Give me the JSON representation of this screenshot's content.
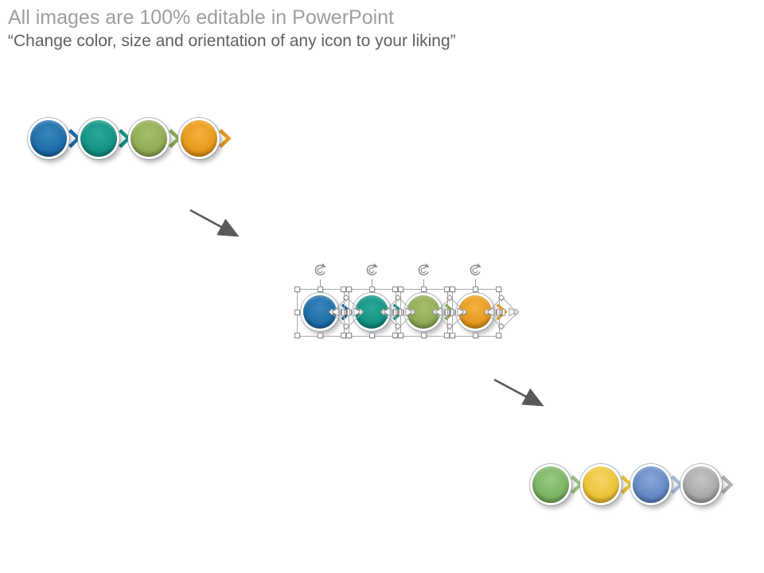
{
  "header": {
    "title": "All images are 100% editable in PowerPoint",
    "subtitle": "“Change color, size and orientation of any icon to your liking”"
  },
  "arrows": {
    "color": "#595959"
  },
  "selection": {
    "handle_fill": "#ffffff",
    "handle_border": "#8f8f8f",
    "box_border": "#a8a8a8",
    "rotate_color": "#909090"
  },
  "groups": [
    {
      "id": "original",
      "label": "original-icon-chain",
      "selected": false,
      "circles": [
        {
          "name": "blue",
          "light": "#3a87bd",
          "main": "#1e6da7",
          "dark": "#11507f",
          "chevron": "#1d6ca5"
        },
        {
          "name": "teal",
          "light": "#2aa795",
          "main": "#149384",
          "dark": "#0b6b60",
          "chevron": "#139083"
        },
        {
          "name": "olive-green",
          "light": "#a8bf6d",
          "main": "#90ab55",
          "dark": "#6f8a3d",
          "chevron": "#8ca851"
        },
        {
          "name": "orange",
          "light": "#f3b13d",
          "main": "#e7991c",
          "dark": "#bd7a0c",
          "chevron": "#e4981d"
        }
      ]
    },
    {
      "id": "selected",
      "label": "selected-icon-chain",
      "selected": true,
      "circles": [
        {
          "name": "blue",
          "light": "#3a87bd",
          "main": "#1e6da7",
          "dark": "#11507f",
          "chevron": "#1d6ca5"
        },
        {
          "name": "teal",
          "light": "#2aa795",
          "main": "#149384",
          "dark": "#0b6b60",
          "chevron": "#139083"
        },
        {
          "name": "olive-green",
          "light": "#a8bf6d",
          "main": "#90ab55",
          "dark": "#6f8a3d",
          "chevron": "#8ca851"
        },
        {
          "name": "orange",
          "light": "#f3b13d",
          "main": "#e7991c",
          "dark": "#bd7a0c",
          "chevron": "#e4981d"
        }
      ]
    },
    {
      "id": "recolored",
      "label": "recolored-icon-chain",
      "selected": false,
      "circles": [
        {
          "name": "green",
          "light": "#9bcb85",
          "main": "#7ab262",
          "dark": "#538c3f",
          "chevron": "#9dc489"
        },
        {
          "name": "yellow",
          "light": "#f5d564",
          "main": "#ecc338",
          "dark": "#c1981a",
          "chevron": "#e9c33b"
        },
        {
          "name": "blue",
          "light": "#8aa7d6",
          "main": "#6288c5",
          "dark": "#43639c",
          "chevron": "#a9bede"
        },
        {
          "name": "gray",
          "light": "#c6c6c6",
          "main": "#a7a7a7",
          "dark": "#838383",
          "chevron": "#b3b3b3"
        }
      ]
    }
  ]
}
